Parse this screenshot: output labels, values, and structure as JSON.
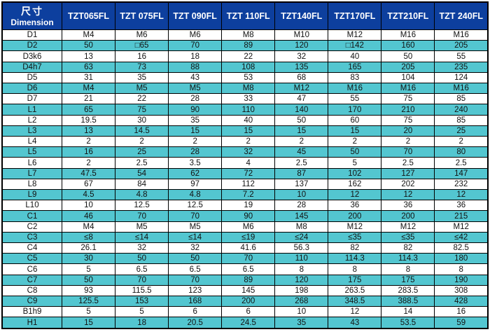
{
  "chart_data": {
    "type": "table",
    "corner_header": {
      "cn": "尺寸",
      "en": "Dimension"
    },
    "columns": [
      "TZT065FL",
      "TZT 075FL",
      "TZT 090FL",
      "TZT 110FL",
      "TZT140FL",
      "TZT170FL",
      "TZT210FL",
      "TZT 240FL"
    ],
    "rows": [
      {
        "label": "D1",
        "values": [
          "M4",
          "M6",
          "M6",
          "M8",
          "M10",
          "M12",
          "M16",
          "M16"
        ]
      },
      {
        "label": "D2",
        "values": [
          "50",
          "□65",
          "70",
          "89",
          "120",
          "□142",
          "160",
          "205"
        ]
      },
      {
        "label": "D3k6",
        "values": [
          "13",
          "16",
          "18",
          "22",
          "32",
          "40",
          "50",
          "55"
        ]
      },
      {
        "label": "D4h7",
        "values": [
          "63",
          "73",
          "88",
          "108",
          "135",
          "165",
          "205",
          "235"
        ]
      },
      {
        "label": "D5",
        "values": [
          "31",
          "35",
          "43",
          "53",
          "68",
          "83",
          "104",
          "124"
        ]
      },
      {
        "label": "D6",
        "values": [
          "M4",
          "M5",
          "M5",
          "M8",
          "M12",
          "M16",
          "M16",
          "M16"
        ]
      },
      {
        "label": "D7",
        "values": [
          "21",
          "22",
          "28",
          "33",
          "47",
          "55",
          "75",
          "85"
        ]
      },
      {
        "label": "L1",
        "values": [
          "65",
          "75",
          "90",
          "110",
          "140",
          "170",
          "210",
          "240"
        ]
      },
      {
        "label": "L2",
        "values": [
          "19.5",
          "30",
          "35",
          "40",
          "50",
          "60",
          "75",
          "85"
        ]
      },
      {
        "label": "L3",
        "values": [
          "13",
          "14.5",
          "15",
          "15",
          "15",
          "15",
          "20",
          "25"
        ]
      },
      {
        "label": "L4",
        "values": [
          "2",
          "2",
          "2",
          "2",
          "2",
          "2",
          "2",
          "2"
        ]
      },
      {
        "label": "L5",
        "values": [
          "16",
          "25",
          "28",
          "32",
          "45",
          "50",
          "70",
          "80"
        ]
      },
      {
        "label": "L6",
        "values": [
          "2",
          "2.5",
          "3.5",
          "4",
          "2.5",
          "5",
          "2.5",
          "2.5"
        ]
      },
      {
        "label": "L7",
        "values": [
          "47.5",
          "54",
          "62",
          "72",
          "87",
          "102",
          "127",
          "147"
        ]
      },
      {
        "label": "L8",
        "values": [
          "67",
          "84",
          "97",
          "112",
          "137",
          "162",
          "202",
          "232"
        ]
      },
      {
        "label": "L9",
        "values": [
          "4.5",
          "4.8",
          "4.8",
          "7.2",
          "10",
          "12",
          "12",
          "12"
        ]
      },
      {
        "label": "L10",
        "values": [
          "10",
          "12.5",
          "12.5",
          "19",
          "28",
          "36",
          "36",
          "36"
        ]
      },
      {
        "label": "C1",
        "values": [
          "46",
          "70",
          "70",
          "90",
          "145",
          "200",
          "200",
          "215"
        ]
      },
      {
        "label": "C2",
        "values": [
          "M4",
          "M5",
          "M5",
          "M6",
          "M8",
          "M12",
          "M12",
          "M12"
        ]
      },
      {
        "label": "C3",
        "values": [
          "≤8",
          "≤14",
          "≤14",
          "≤19",
          "≤24",
          "≤35",
          "≤35",
          "≤42"
        ]
      },
      {
        "label": "C4",
        "values": [
          "26.1",
          "32",
          "32",
          "41.6",
          "56.3",
          "82",
          "82",
          "82.5"
        ]
      },
      {
        "label": "C5",
        "values": [
          "30",
          "50",
          "50",
          "70",
          "110",
          "114.3",
          "114.3",
          "180"
        ]
      },
      {
        "label": "C6",
        "values": [
          "5",
          "6.5",
          "6.5",
          "6.5",
          "8",
          "8",
          "8",
          "8"
        ]
      },
      {
        "label": "C7",
        "values": [
          "50",
          "70",
          "70",
          "89",
          "120",
          "175",
          "175",
          "190"
        ]
      },
      {
        "label": "C8",
        "values": [
          "93",
          "115.5",
          "123",
          "145",
          "198",
          "263.5",
          "283.5",
          "308"
        ]
      },
      {
        "label": "C9",
        "values": [
          "125.5",
          "153",
          "168",
          "200",
          "268",
          "348.5",
          "388.5",
          "428"
        ]
      },
      {
        "label": "B1h9",
        "values": [
          "5",
          "5",
          "6",
          "6",
          "10",
          "12",
          "14",
          "16"
        ]
      },
      {
        "label": "H1",
        "values": [
          "15",
          "18",
          "20.5",
          "24.5",
          "35",
          "43",
          "53.5",
          "59"
        ]
      }
    ]
  },
  "colors": {
    "header_bg": "#0d3f9e",
    "header_text": "#ffffff",
    "row_white_bg": "#ffffff",
    "row_teal_bg": "#53c6d0",
    "cell_text": "#121212",
    "border": "#000000"
  }
}
